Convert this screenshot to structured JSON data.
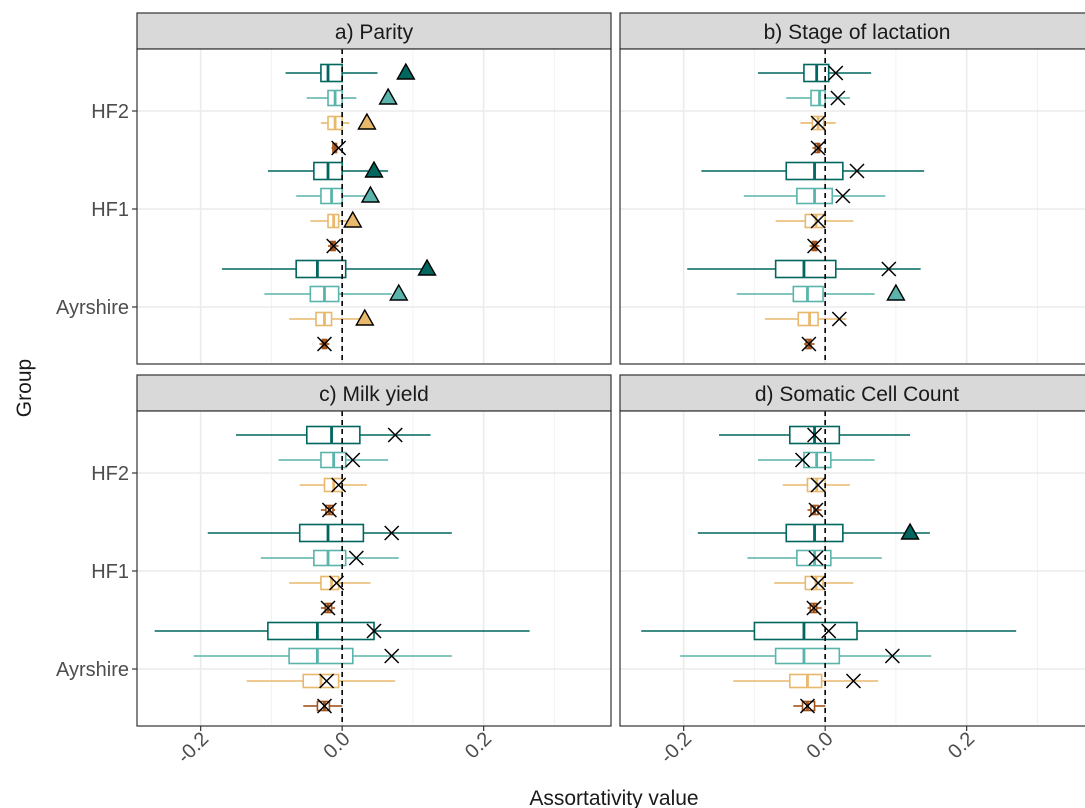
{
  "chart_data": {
    "type": "boxplot",
    "xlabel": "Assortativity value",
    "ylabel": "Group",
    "x_ticks": [
      -0.2,
      0.0,
      0.2
    ],
    "x_tick_labels": [
      "-0.2",
      "0.0",
      "0.2"
    ],
    "xlim": [
      -0.29,
      0.38
    ],
    "reference_line_x": 0,
    "groups": [
      "Ayrshire",
      "HF1",
      "HF2"
    ],
    "series_colors": [
      "#00665e",
      "#5ab4ac",
      "#e8b86c",
      "#a0521c"
    ],
    "grid": true,
    "panels": [
      {
        "title": "a) Parity",
        "groups": [
          {
            "group": "HF2",
            "series": [
              {
                "whisker": [
                  -0.08,
                  0.05
                ],
                "box": [
                  -0.03,
                  0.0
                ],
                "median": -0.02,
                "observed": 0.09,
                "marker": "triangle"
              },
              {
                "whisker": [
                  -0.05,
                  0.02
                ],
                "box": [
                  -0.02,
                  0.0
                ],
                "median": -0.01,
                "observed": 0.065,
                "marker": "triangle"
              },
              {
                "whisker": [
                  -0.03,
                  0.01
                ],
                "box": [
                  -0.02,
                  0.0
                ],
                "median": -0.01,
                "observed": 0.035,
                "marker": "triangle"
              },
              {
                "whisker": [
                  -0.015,
                  -0.005
                ],
                "box": [
                  -0.013,
                  -0.008
                ],
                "median": -0.01,
                "observed": -0.005,
                "marker": "x"
              }
            ]
          },
          {
            "group": "HF1",
            "series": [
              {
                "whisker": [
                  -0.105,
                  0.065
                ],
                "box": [
                  -0.04,
                  0.0
                ],
                "median": -0.02,
                "observed": 0.045,
                "marker": "triangle"
              },
              {
                "whisker": [
                  -0.065,
                  0.04
                ],
                "box": [
                  -0.03,
                  0.0
                ],
                "median": -0.015,
                "observed": 0.04,
                "marker": "triangle"
              },
              {
                "whisker": [
                  -0.045,
                  0.015
                ],
                "box": [
                  -0.02,
                  -0.005
                ],
                "median": -0.012,
                "observed": 0.015,
                "marker": "triangle"
              },
              {
                "whisker": [
                  -0.02,
                  -0.005
                ],
                "box": [
                  -0.016,
                  -0.01
                ],
                "median": -0.013,
                "observed": -0.012,
                "marker": "x"
              }
            ]
          },
          {
            "group": "Ayrshire",
            "series": [
              {
                "whisker": [
                  -0.17,
                  0.12
                ],
                "box": [
                  -0.065,
                  0.005
                ],
                "median": -0.035,
                "observed": 0.12,
                "marker": "triangle"
              },
              {
                "whisker": [
                  -0.11,
                  0.07
                ],
                "box": [
                  -0.045,
                  -0.005
                ],
                "median": -0.025,
                "observed": 0.08,
                "marker": "triangle"
              },
              {
                "whisker": [
                  -0.075,
                  0.04
                ],
                "box": [
                  -0.037,
                  -0.015
                ],
                "median": -0.025,
                "observed": 0.032,
                "marker": "triangle"
              },
              {
                "whisker": [
                  -0.032,
                  -0.018
                ],
                "box": [
                  -0.028,
                  -0.022
                ],
                "median": -0.025,
                "observed": -0.025,
                "marker": "x"
              }
            ]
          }
        ]
      },
      {
        "title": "b) Stage of lactation",
        "groups": [
          {
            "group": "HF2",
            "series": [
              {
                "whisker": [
                  -0.095,
                  0.065
                ],
                "box": [
                  -0.03,
                  0.005
                ],
                "median": -0.012,
                "observed": 0.015,
                "marker": "x"
              },
              {
                "whisker": [
                  -0.055,
                  0.035
                ],
                "box": [
                  -0.02,
                  0.0
                ],
                "median": -0.008,
                "observed": 0.018,
                "marker": "x"
              },
              {
                "whisker": [
                  -0.035,
                  0.015
                ],
                "box": [
                  -0.018,
                  -0.002
                ],
                "median": -0.01,
                "observed": -0.01,
                "marker": "x"
              },
              {
                "whisker": [
                  -0.018,
                  -0.005
                ],
                "box": [
                  -0.014,
                  -0.008
                ],
                "median": -0.01,
                "observed": -0.01,
                "marker": "x"
              }
            ]
          },
          {
            "group": "HF1",
            "series": [
              {
                "whisker": [
                  -0.175,
                  0.14
                ],
                "box": [
                  -0.055,
                  0.025
                ],
                "median": -0.015,
                "observed": 0.045,
                "marker": "x"
              },
              {
                "whisker": [
                  -0.115,
                  0.085
                ],
                "box": [
                  -0.04,
                  0.01
                ],
                "median": -0.015,
                "observed": 0.025,
                "marker": "x"
              },
              {
                "whisker": [
                  -0.07,
                  0.04
                ],
                "box": [
                  -0.028,
                  0.0
                ],
                "median": -0.013,
                "observed": -0.01,
                "marker": "x"
              },
              {
                "whisker": [
                  -0.022,
                  -0.008
                ],
                "box": [
                  -0.018,
                  -0.012
                ],
                "median": -0.015,
                "observed": -0.015,
                "marker": "x"
              }
            ]
          },
          {
            "group": "Ayrshire",
            "series": [
              {
                "whisker": [
                  -0.195,
                  0.135
                ],
                "box": [
                  -0.07,
                  0.015
                ],
                "median": -0.03,
                "observed": 0.09,
                "marker": "x"
              },
              {
                "whisker": [
                  -0.125,
                  0.07
                ],
                "box": [
                  -0.045,
                  -0.003
                ],
                "median": -0.025,
                "observed": 0.1,
                "marker": "triangle"
              },
              {
                "whisker": [
                  -0.085,
                  0.03
                ],
                "box": [
                  -0.038,
                  -0.01
                ],
                "median": -0.022,
                "observed": 0.02,
                "marker": "x"
              },
              {
                "whisker": [
                  -0.03,
                  -0.015
                ],
                "box": [
                  -0.027,
                  -0.02
                ],
                "median": -0.023,
                "observed": -0.023,
                "marker": "x"
              }
            ]
          }
        ]
      },
      {
        "title": "c) Milk yield",
        "groups": [
          {
            "group": "HF2",
            "series": [
              {
                "whisker": [
                  -0.15,
                  0.125
                ],
                "box": [
                  -0.05,
                  0.025
                ],
                "median": -0.015,
                "observed": 0.075,
                "marker": "x"
              },
              {
                "whisker": [
                  -0.09,
                  0.065
                ],
                "box": [
                  -0.03,
                  0.005
                ],
                "median": -0.012,
                "observed": 0.015,
                "marker": "x"
              },
              {
                "whisker": [
                  -0.06,
                  0.035
                ],
                "box": [
                  -0.025,
                  0.0
                ],
                "median": -0.012,
                "observed": -0.005,
                "marker": "x"
              },
              {
                "whisker": [
                  -0.03,
                  -0.01
                ],
                "box": [
                  -0.023,
                  -0.013
                ],
                "median": -0.018,
                "observed": -0.018,
                "marker": "x"
              }
            ]
          },
          {
            "group": "HF1",
            "series": [
              {
                "whisker": [
                  -0.19,
                  0.155
                ],
                "box": [
                  -0.06,
                  0.03
                ],
                "median": -0.02,
                "observed": 0.07,
                "marker": "x"
              },
              {
                "whisker": [
                  -0.115,
                  0.08
                ],
                "box": [
                  -0.04,
                  0.005
                ],
                "median": -0.02,
                "observed": 0.02,
                "marker": "x"
              },
              {
                "whisker": [
                  -0.075,
                  0.04
                ],
                "box": [
                  -0.03,
                  -0.005
                ],
                "median": -0.015,
                "observed": -0.008,
                "marker": "x"
              },
              {
                "whisker": [
                  -0.03,
                  -0.01
                ],
                "box": [
                  -0.024,
                  -0.015
                ],
                "median": -0.02,
                "observed": -0.02,
                "marker": "x"
              }
            ]
          },
          {
            "group": "Ayrshire",
            "series": [
              {
                "whisker": [
                  -0.265,
                  0.265
                ],
                "box": [
                  -0.105,
                  0.045
                ],
                "median": -0.035,
                "observed": 0.045,
                "marker": "x"
              },
              {
                "whisker": [
                  -0.21,
                  0.155
                ],
                "box": [
                  -0.075,
                  0.015
                ],
                "median": -0.035,
                "observed": 0.07,
                "marker": "x"
              },
              {
                "whisker": [
                  -0.135,
                  0.075
                ],
                "box": [
                  -0.055,
                  -0.005
                ],
                "median": -0.03,
                "observed": -0.022,
                "marker": "x"
              },
              {
                "whisker": [
                  -0.055,
                  0.0
                ],
                "box": [
                  -0.035,
                  -0.018
                ],
                "median": -0.025,
                "observed": -0.025,
                "marker": "x"
              }
            ]
          }
        ]
      },
      {
        "title": "d) Somatic Cell Count",
        "groups": [
          {
            "group": "HF2",
            "series": [
              {
                "whisker": [
                  -0.15,
                  0.12
                ],
                "box": [
                  -0.05,
                  0.02
                ],
                "median": -0.015,
                "observed": -0.015,
                "marker": "x"
              },
              {
                "whisker": [
                  -0.095,
                  0.07
                ],
                "box": [
                  -0.03,
                  0.008
                ],
                "median": -0.012,
                "observed": -0.032,
                "marker": "x"
              },
              {
                "whisker": [
                  -0.06,
                  0.035
                ],
                "box": [
                  -0.025,
                  0.0
                ],
                "median": -0.012,
                "observed": -0.01,
                "marker": "x"
              },
              {
                "whisker": [
                  -0.025,
                  -0.005
                ],
                "box": [
                  -0.02,
                  -0.01
                ],
                "median": -0.015,
                "observed": -0.013,
                "marker": "x"
              }
            ]
          },
          {
            "group": "HF1",
            "series": [
              {
                "whisker": [
                  -0.18,
                  0.148
                ],
                "box": [
                  -0.055,
                  0.025
                ],
                "median": -0.015,
                "observed": 0.12,
                "marker": "triangle"
              },
              {
                "whisker": [
                  -0.11,
                  0.08
                ],
                "box": [
                  -0.04,
                  0.008
                ],
                "median": -0.015,
                "observed": -0.013,
                "marker": "x"
              },
              {
                "whisker": [
                  -0.072,
                  0.04
                ],
                "box": [
                  -0.028,
                  -0.003
                ],
                "median": -0.013,
                "observed": -0.01,
                "marker": "x"
              },
              {
                "whisker": [
                  -0.025,
                  -0.005
                ],
                "box": [
                  -0.021,
                  -0.012
                ],
                "median": -0.016,
                "observed": -0.016,
                "marker": "x"
              }
            ]
          },
          {
            "group": "Ayrshire",
            "series": [
              {
                "whisker": [
                  -0.26,
                  0.27
                ],
                "box": [
                  -0.1,
                  0.045
                ],
                "median": -0.03,
                "observed": 0.005,
                "marker": "x"
              },
              {
                "whisker": [
                  -0.205,
                  0.15
                ],
                "box": [
                  -0.07,
                  0.02
                ],
                "median": -0.03,
                "observed": 0.095,
                "marker": "x"
              },
              {
                "whisker": [
                  -0.13,
                  0.075
                ],
                "box": [
                  -0.05,
                  -0.005
                ],
                "median": -0.025,
                "observed": 0.04,
                "marker": "x"
              },
              {
                "whisker": [
                  -0.045,
                  0.0
                ],
                "box": [
                  -0.032,
                  -0.015
                ],
                "median": -0.025,
                "observed": -0.025,
                "marker": "x"
              }
            ]
          }
        ]
      }
    ]
  }
}
